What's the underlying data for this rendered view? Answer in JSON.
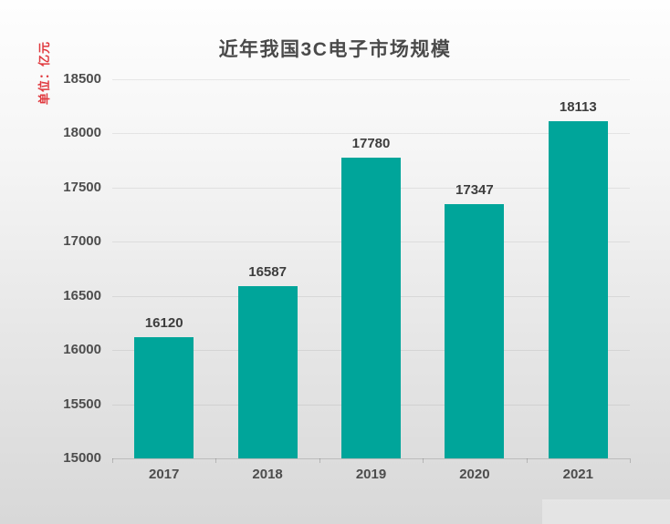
{
  "chart_data": {
    "type": "bar",
    "title": "近年我国3C电子市场规模",
    "unit_label": "单位：亿元",
    "categories": [
      "2017",
      "2018",
      "2019",
      "2020",
      "2021"
    ],
    "values": [
      16120,
      16587,
      17780,
      17347,
      18113
    ],
    "value_labels": [
      "16120",
      "16587",
      "17780",
      "17347",
      "18113"
    ],
    "ylim": [
      15000,
      18500
    ],
    "ytick_step": 500,
    "yticks": [
      15000,
      15500,
      16000,
      16500,
      17000,
      17500,
      18000,
      18500
    ],
    "xlabel": "",
    "ylabel": "单位：亿元",
    "grid": true,
    "legend": "none",
    "colors": {
      "bar": "#00a59a",
      "title_text": "#4a4a4a",
      "axis_text": "#4d4d4d",
      "value_text": "#3d3d3d",
      "unit_text": "#e0393e"
    }
  }
}
